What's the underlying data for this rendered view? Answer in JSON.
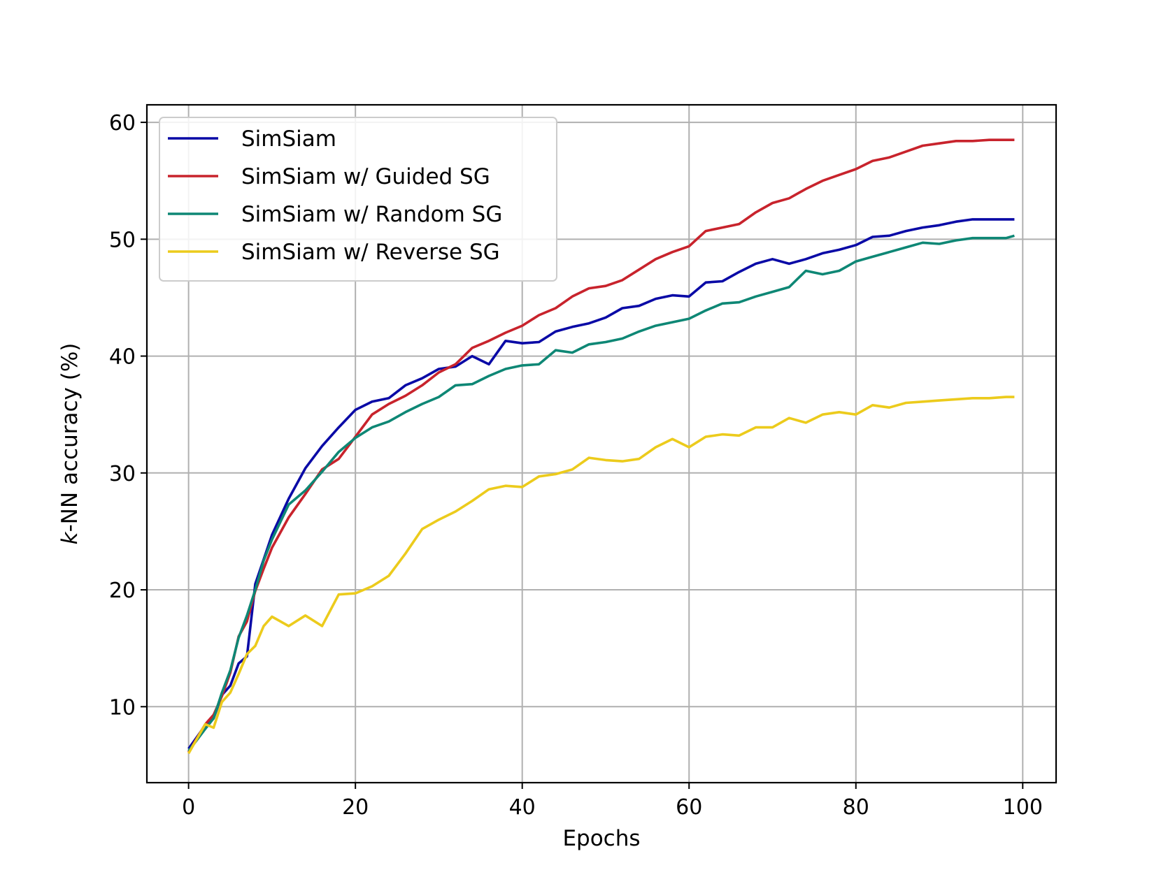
{
  "chart_data": {
    "type": "line",
    "xlabel": "Epochs",
    "ylabel": "k-NN accuracy (%)",
    "ylabel_italic_prefix": "k",
    "ylabel_rest": "-NN accuracy (%)",
    "xlim": [
      -5,
      104
    ],
    "ylim": [
      3.5,
      61.5
    ],
    "xticks": [
      0,
      20,
      40,
      60,
      80,
      100
    ],
    "yticks": [
      10,
      20,
      30,
      40,
      50,
      60
    ],
    "grid": true,
    "legend_position": "upper-left",
    "x": [
      0,
      2,
      3,
      4,
      5,
      6,
      7,
      8,
      9,
      10,
      12,
      14,
      16,
      18,
      20,
      22,
      24,
      26,
      28,
      30,
      32,
      34,
      36,
      38,
      40,
      42,
      44,
      46,
      48,
      50,
      52,
      54,
      56,
      58,
      60,
      62,
      64,
      66,
      68,
      70,
      72,
      74,
      76,
      78,
      80,
      82,
      84,
      86,
      88,
      90,
      92,
      94,
      96,
      98,
      99
    ],
    "series": [
      {
        "name": "SimSiam",
        "color": "#0a0aa6",
        "values": [
          6.4,
          8.4,
          9.0,
          11.0,
          11.8,
          13.7,
          14.3,
          20.5,
          22.6,
          24.7,
          27.8,
          30.4,
          32.3,
          33.9,
          35.4,
          36.1,
          36.4,
          37.5,
          38.1,
          38.9,
          39.1,
          40.0,
          39.3,
          41.3,
          41.1,
          41.2,
          42.1,
          42.5,
          42.8,
          43.3,
          44.1,
          44.3,
          44.9,
          45.2,
          45.1,
          46.3,
          46.4,
          47.2,
          47.9,
          48.3,
          47.9,
          48.3,
          48.8,
          49.1,
          49.5,
          50.2,
          50.3,
          50.7,
          51.0,
          51.2,
          51.5,
          51.7,
          51.7,
          51.7,
          51.7
        ]
      },
      {
        "name": "SimSiam w/ Guided SG",
        "color": "#c8232c",
        "values": [
          6.1,
          8.5,
          9.3,
          10.9,
          12.9,
          16.0,
          17.3,
          19.9,
          21.8,
          23.6,
          26.2,
          28.2,
          30.3,
          31.2,
          33.1,
          35.0,
          35.9,
          36.6,
          37.5,
          38.6,
          39.3,
          40.7,
          41.3,
          42.0,
          42.6,
          43.5,
          44.1,
          45.1,
          45.8,
          46.0,
          46.5,
          47.4,
          48.3,
          48.9,
          49.4,
          50.7,
          51.0,
          51.3,
          52.3,
          53.1,
          53.5,
          54.3,
          55.0,
          55.5,
          56.0,
          56.7,
          57.0,
          57.5,
          58.0,
          58.2,
          58.4,
          58.4,
          58.5,
          58.5,
          58.5
        ]
      },
      {
        "name": "SimSiam w/ Random SG",
        "color": "#0e8775",
        "values": [
          6.2,
          8.1,
          9.0,
          11.2,
          13.1,
          15.9,
          17.8,
          20.0,
          22.5,
          24.3,
          27.3,
          28.5,
          30.1,
          31.8,
          33.0,
          33.9,
          34.4,
          35.2,
          35.9,
          36.5,
          37.5,
          37.6,
          38.3,
          38.9,
          39.2,
          39.3,
          40.5,
          40.3,
          41.0,
          41.2,
          41.5,
          42.1,
          42.6,
          42.9,
          43.2,
          43.9,
          44.5,
          44.6,
          45.1,
          45.5,
          45.9,
          47.3,
          47.0,
          47.3,
          48.1,
          48.5,
          48.9,
          49.3,
          49.7,
          49.6,
          49.9,
          50.1,
          50.1,
          50.1,
          50.3
        ]
      },
      {
        "name": "SimSiam w/ Reverse SG",
        "color": "#eccb1c",
        "values": [
          6.0,
          8.5,
          8.2,
          10.4,
          11.2,
          12.8,
          14.5,
          15.2,
          16.9,
          17.7,
          16.9,
          17.8,
          16.9,
          19.6,
          19.7,
          20.3,
          21.2,
          23.1,
          25.2,
          26.0,
          26.7,
          27.6,
          28.6,
          28.9,
          28.8,
          29.7,
          29.9,
          30.3,
          31.3,
          31.1,
          31.0,
          31.2,
          32.2,
          32.9,
          32.2,
          33.1,
          33.3,
          33.2,
          33.9,
          33.9,
          34.7,
          34.3,
          35.0,
          35.2,
          35.0,
          35.8,
          35.6,
          36.0,
          36.1,
          36.2,
          36.3,
          36.4,
          36.4,
          36.5,
          36.5
        ]
      }
    ]
  }
}
